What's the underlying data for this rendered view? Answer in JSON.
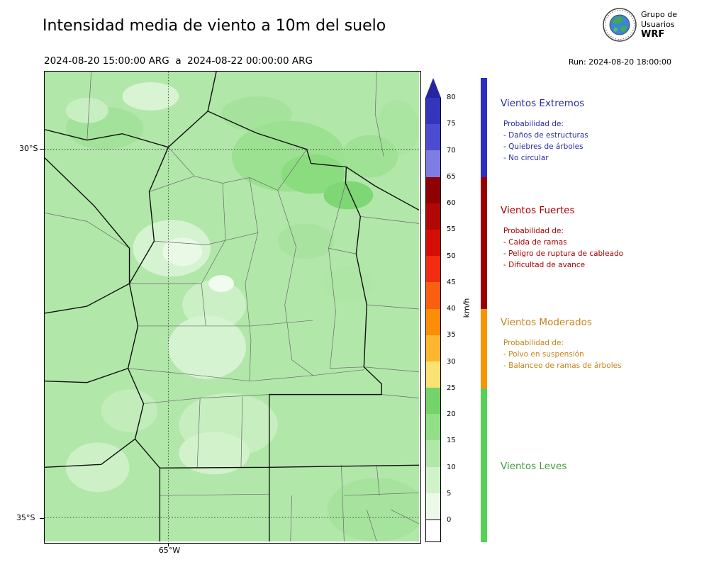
{
  "header": {
    "title": "Intensidad media de viento a 10m del suelo",
    "valid_period": "2024-08-20 15:00:00 ARG  a  2024-08-22 00:00:00 ARG",
    "run_label": "Run: 2024-08-20 18:00:00",
    "logo": {
      "line1": "Grupo de",
      "line2": "Usuarios",
      "line3": "WRF"
    }
  },
  "map": {
    "lat_labels": [
      "30°S",
      "35°S"
    ],
    "lon_label": "65°W"
  },
  "colorbar": {
    "unit": "km/h",
    "ticks": [
      "80",
      "75",
      "70",
      "65",
      "60",
      "55",
      "50",
      "45",
      "40",
      "35",
      "30",
      "25",
      "20",
      "15",
      "10",
      "5",
      "0"
    ],
    "over_color": "#26269e",
    "segments": [
      {
        "range": "75-80",
        "color": "#3434bd"
      },
      {
        "range": "70-75",
        "color": "#4c4cd0"
      },
      {
        "range": "65-70",
        "color": "#7d7de2"
      },
      {
        "range": "60-65",
        "color": "#8e0202"
      },
      {
        "range": "55-60",
        "color": "#b20707"
      },
      {
        "range": "50-55",
        "color": "#d60d05"
      },
      {
        "range": "45-50",
        "color": "#f22c10"
      },
      {
        "range": "40-45",
        "color": "#fa5f10"
      },
      {
        "range": "35-40",
        "color": "#fb8d07"
      },
      {
        "range": "30-35",
        "color": "#fcb72e"
      },
      {
        "range": "25-30",
        "color": "#f9e272"
      },
      {
        "range": "20-25",
        "color": "#74d369"
      },
      {
        "range": "15-20",
        "color": "#92df87"
      },
      {
        "range": "10-15",
        "color": "#b1e7a8"
      },
      {
        "range": "5-10",
        "color": "#d0f1ca"
      },
      {
        "range": "0-5",
        "color": "#ecf9e9"
      }
    ]
  },
  "legend": {
    "categories": [
      {
        "name": "Vientos Extremos",
        "color": "#2e2ec4",
        "text_color": "#2a2aa8",
        "prob_label": "Probabilidad de:",
        "items": [
          "- Daños de estructuras",
          "- Quiebres de árboles",
          "- No circular"
        ]
      },
      {
        "name": "Vientos Fuertes",
        "color": "#970000",
        "text_color": "#a80000",
        "prob_label": "Probabilidad de:",
        "items": [
          "- Caida de ramas",
          "- Peligro de ruptura de cableado",
          "- Dificultad de avance"
        ]
      },
      {
        "name": "Vientos Moderados",
        "color": "#f79400",
        "text_color": "#c8831a",
        "prob_label": "Probabilidad de:",
        "items": [
          "- Polvo en suspensión",
          "- Balanceo de ramas de árboles"
        ]
      },
      {
        "name": "Vientos Leves",
        "color": "#57d057",
        "text_color": "#3f9e3f",
        "prob_label": "",
        "items": []
      }
    ]
  }
}
